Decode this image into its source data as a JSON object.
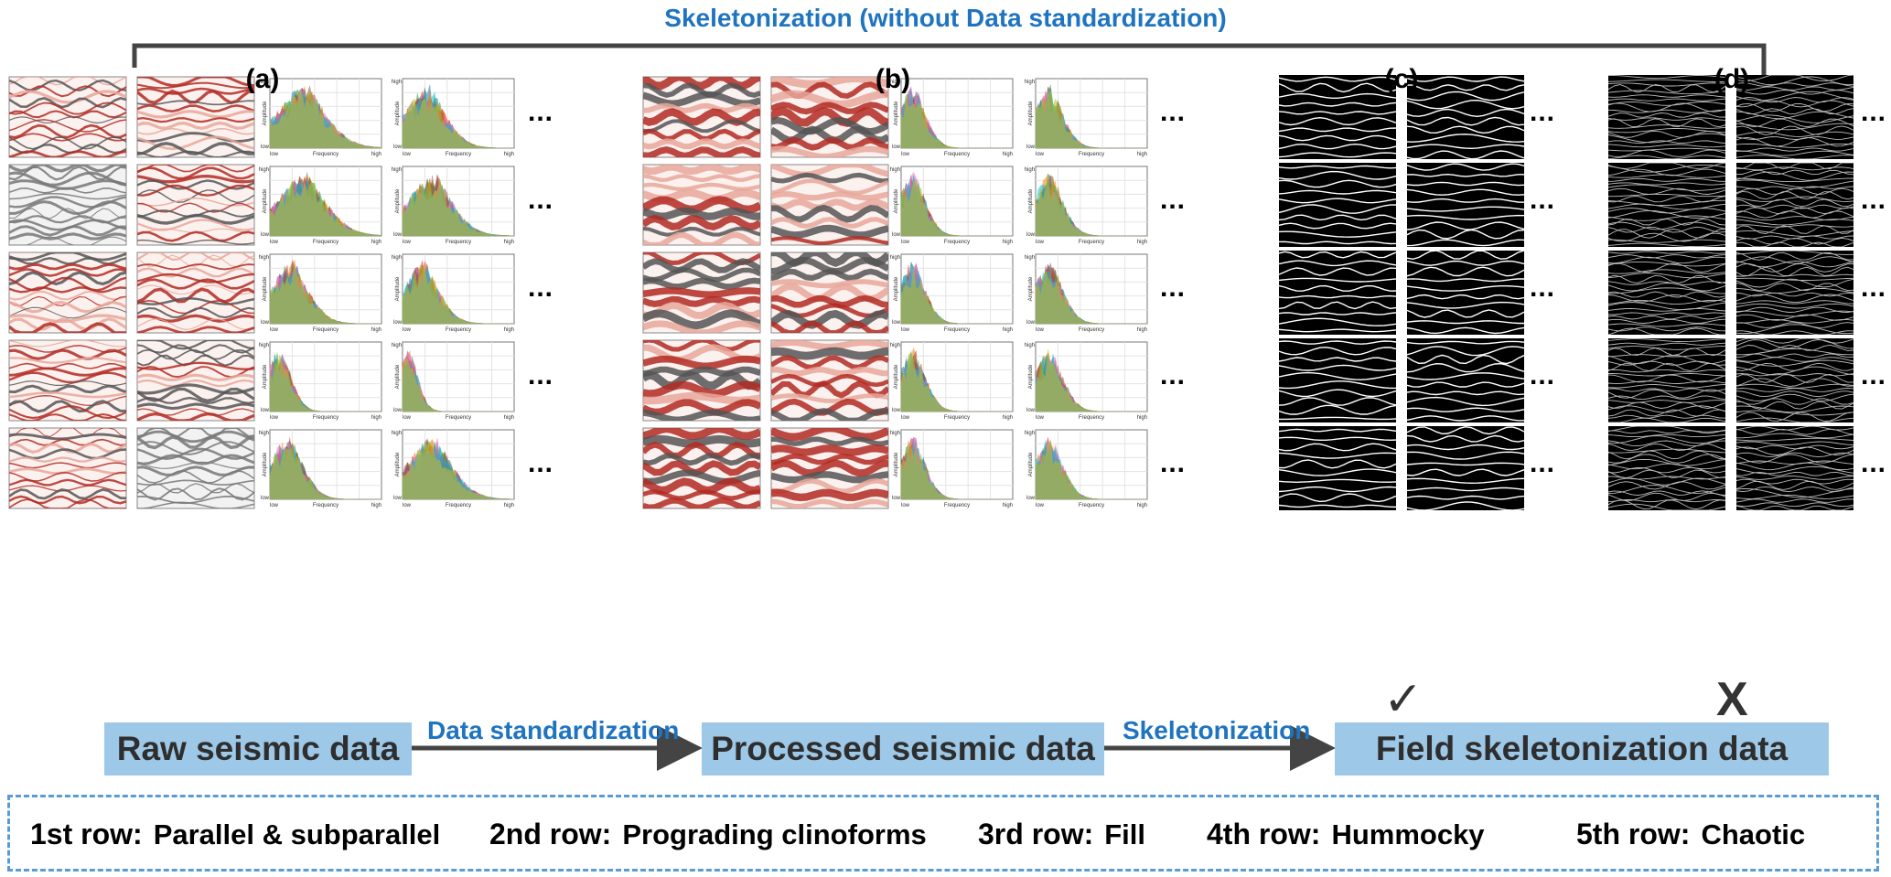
{
  "top_label": "Skeletonization (without Data standardization)",
  "panels": [
    "(a)",
    "(b)",
    "(c)",
    "(d)"
  ],
  "plot_axis": {
    "high": "high",
    "low": "low",
    "xlabel": "Frequency",
    "ylabel": "Amplitude"
  },
  "ellipsis": "...",
  "marks": {
    "check": "✓",
    "cross": "X"
  },
  "flow": {
    "stages": [
      "Raw seismic data",
      "Processed seismic data",
      "Field skeletonization data"
    ],
    "arrows": [
      "Data standardization",
      "Skeletonization"
    ]
  },
  "legend": [
    {
      "rank": "1st row:",
      "name": "Parallel & subparallel"
    },
    {
      "rank": "2nd row:",
      "name": "Prograding clinoforms"
    },
    {
      "rank": "3rd row:",
      "name": "Fill"
    },
    {
      "rank": "4th row:",
      "name": "Hummocky"
    },
    {
      "rank": "5th row:",
      "name": "Chaotic"
    }
  ],
  "colors": {
    "accent_text": "#1f74c0",
    "stage_box": "#9ec8e7",
    "legend_border": "#5b9bd5",
    "seismic_red": "#b22a22",
    "seismic_dark": "#1a1a1a"
  }
}
